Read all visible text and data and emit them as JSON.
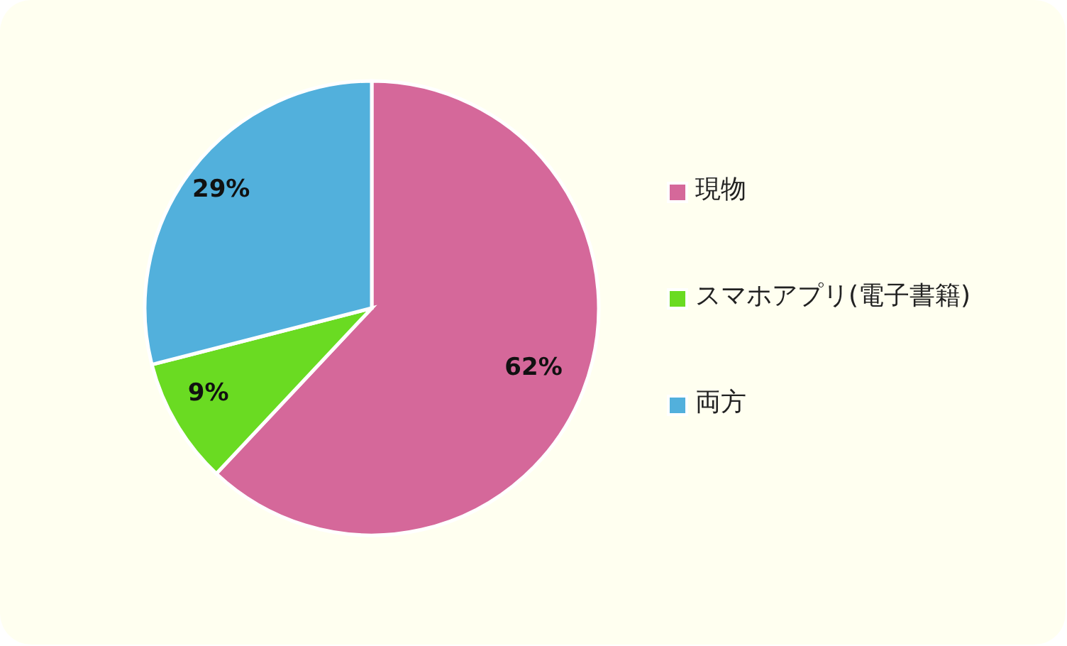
{
  "chart_data": {
    "type": "pie",
    "categories": [
      "現物",
      "スマホアプリ(電子書籍)",
      "両方"
    ],
    "values": [
      62,
      9,
      29
    ],
    "colors": [
      "#d5689a",
      "#6adb22",
      "#52b0dc"
    ],
    "value_labels": [
      "62%",
      "9%",
      "29%"
    ],
    "legend": "right"
  }
}
